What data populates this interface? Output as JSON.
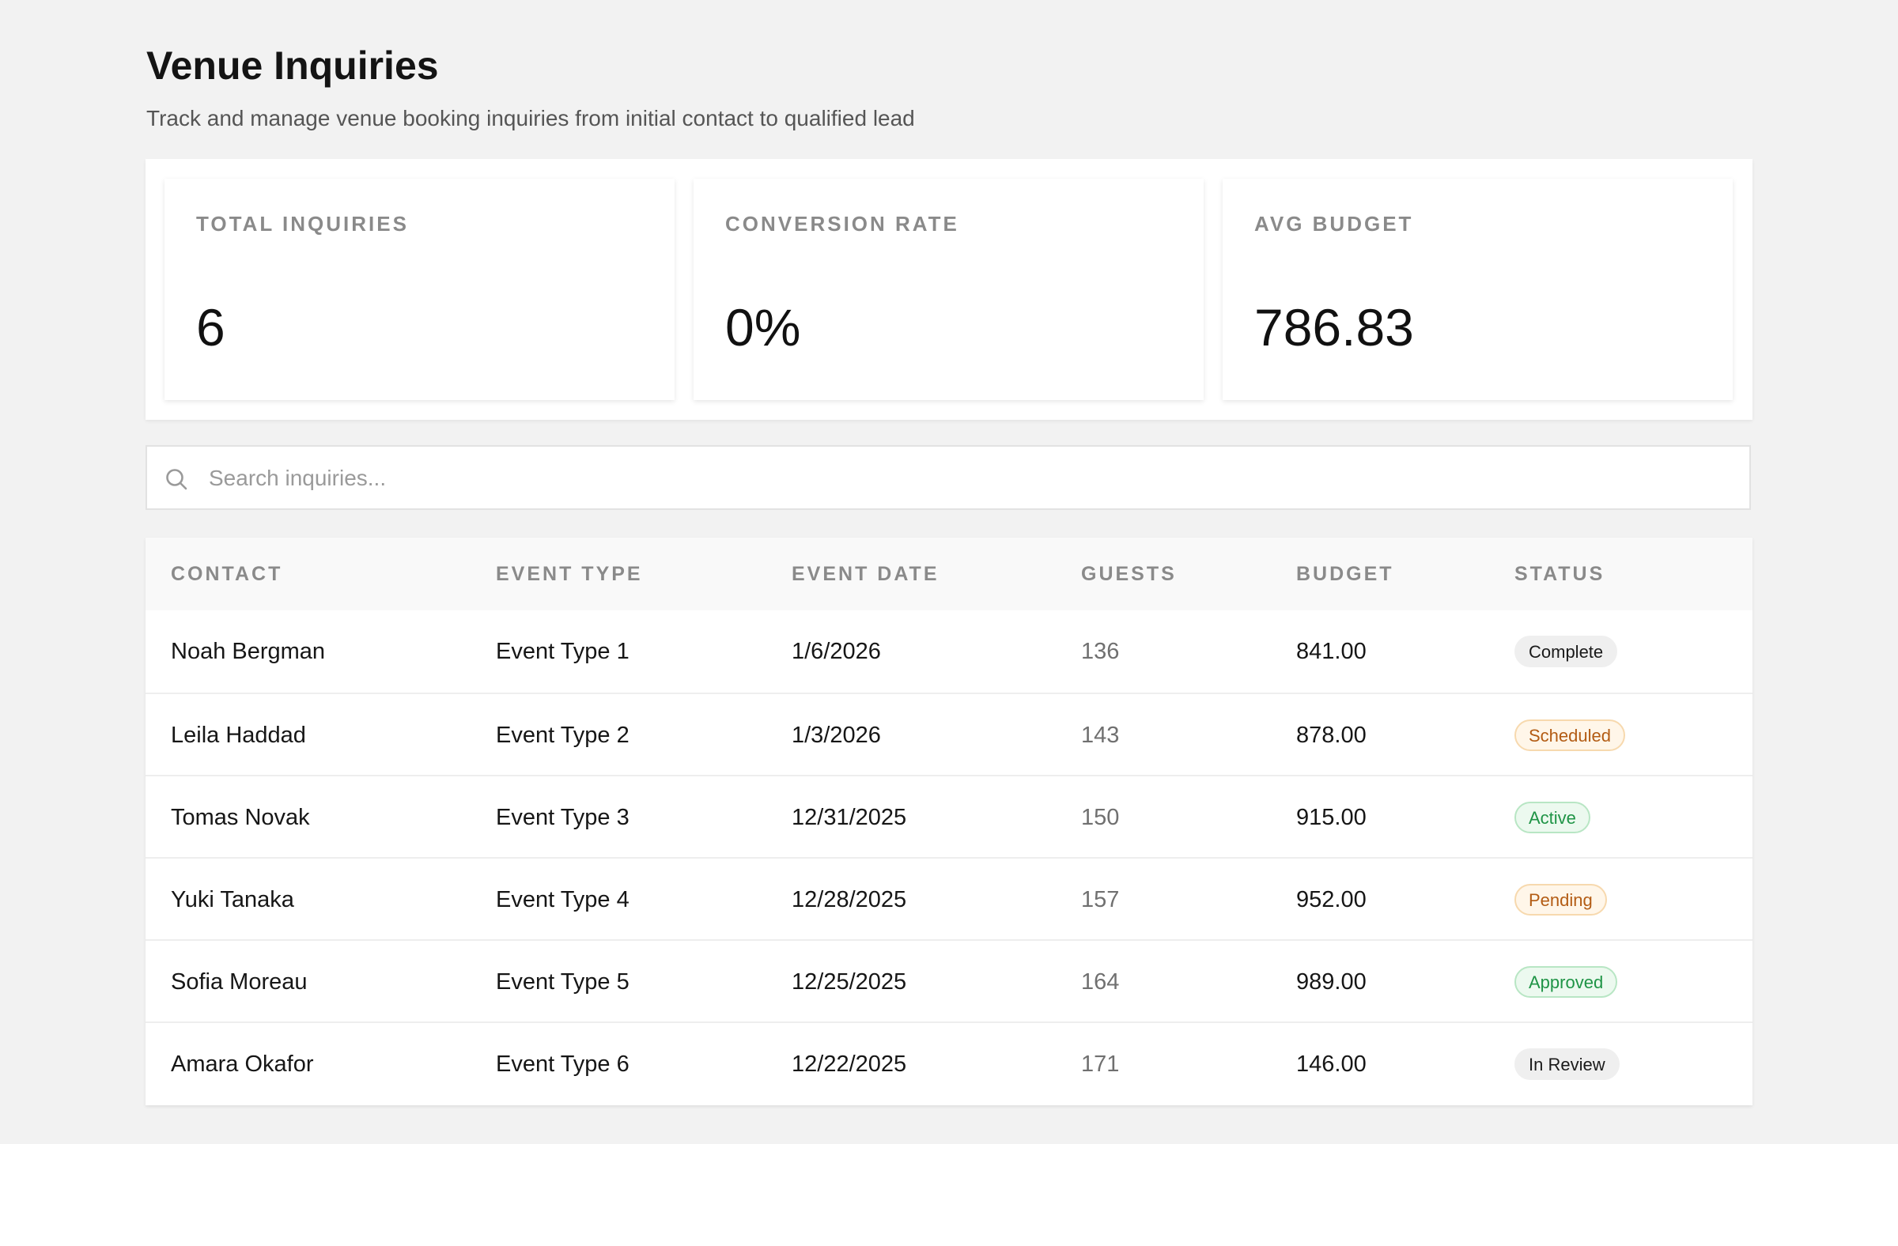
{
  "header": {
    "title": "Venue Inquiries",
    "subtitle": "Track and manage venue booking inquiries from initial contact to qualified lead"
  },
  "stats": [
    {
      "label": "TOTAL INQUIRIES",
      "value": "6"
    },
    {
      "label": "CONVERSION RATE",
      "value": "0%"
    },
    {
      "label": "AVG BUDGET",
      "value": "786.83"
    }
  ],
  "search": {
    "placeholder": "Search inquiries...",
    "value": "",
    "icon": "search-icon"
  },
  "table": {
    "columns": [
      "CONTACT",
      "EVENT TYPE",
      "EVENT DATE",
      "GUESTS",
      "BUDGET",
      "STATUS"
    ],
    "rows": [
      {
        "contact": "Noah Bergman",
        "event_type": "Event Type 1",
        "event_date": "1/6/2026",
        "guests": "136",
        "budget": "841.00",
        "status": "Complete"
      },
      {
        "contact": "Leila Haddad",
        "event_type": "Event Type 2",
        "event_date": "1/3/2026",
        "guests": "143",
        "budget": "878.00",
        "status": "Scheduled"
      },
      {
        "contact": "Tomas Novak",
        "event_type": "Event Type 3",
        "event_date": "12/31/2025",
        "guests": "150",
        "budget": "915.00",
        "status": "Active"
      },
      {
        "contact": "Yuki Tanaka",
        "event_type": "Event Type 4",
        "event_date": "12/28/2025",
        "guests": "157",
        "budget": "952.00",
        "status": "Pending"
      },
      {
        "contact": "Sofia Moreau",
        "event_type": "Event Type 5",
        "event_date": "12/25/2025",
        "guests": "164",
        "budget": "989.00",
        "status": "Approved"
      },
      {
        "contact": "Amara Okafor",
        "event_type": "Event Type 6",
        "event_date": "12/22/2025",
        "guests": "171",
        "budget": "146.00",
        "status": "In Review"
      }
    ]
  },
  "status_colors": {
    "neutral": "#1a1a1a",
    "orange": "#b35c14",
    "green": "#1f9446"
  }
}
